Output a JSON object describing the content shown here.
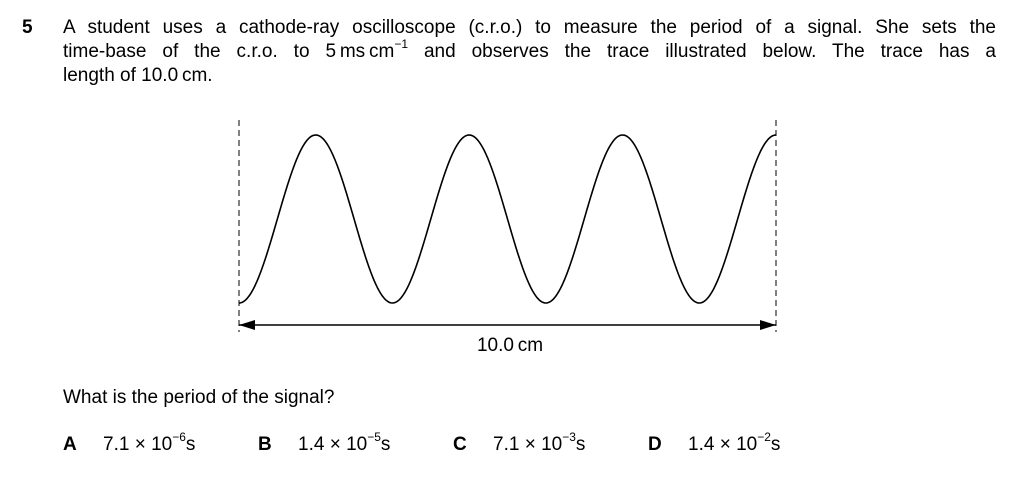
{
  "question": {
    "number": "5",
    "line1": "A student uses a cathode-ray oscilloscope (c.r.o.) to measure the period of a signal. She sets the",
    "line2_a": "time-base of the c.r.o. to 5 ms cm",
    "line2_sup": "−1",
    "line2_b": " and observes the trace illustrated below. The trace has a",
    "line3": "length of 10.0 cm.",
    "prompt": "What is the period of the signal?"
  },
  "figure": {
    "trace_length_label": "10.0 cm",
    "cycles_shown": 3.5
  },
  "options": [
    {
      "letter": "A",
      "mantissa": "7.1 × 10",
      "exponent": "−6",
      "unit": "s"
    },
    {
      "letter": "B",
      "mantissa": "1.4 × 10",
      "exponent": "−5",
      "unit": "s"
    },
    {
      "letter": "C",
      "mantissa": "7.1 × 10",
      "exponent": "−3",
      "unit": "s"
    },
    {
      "letter": "D",
      "mantissa": "1.4 × 10",
      "exponent": "−2",
      "unit": "s"
    }
  ]
}
